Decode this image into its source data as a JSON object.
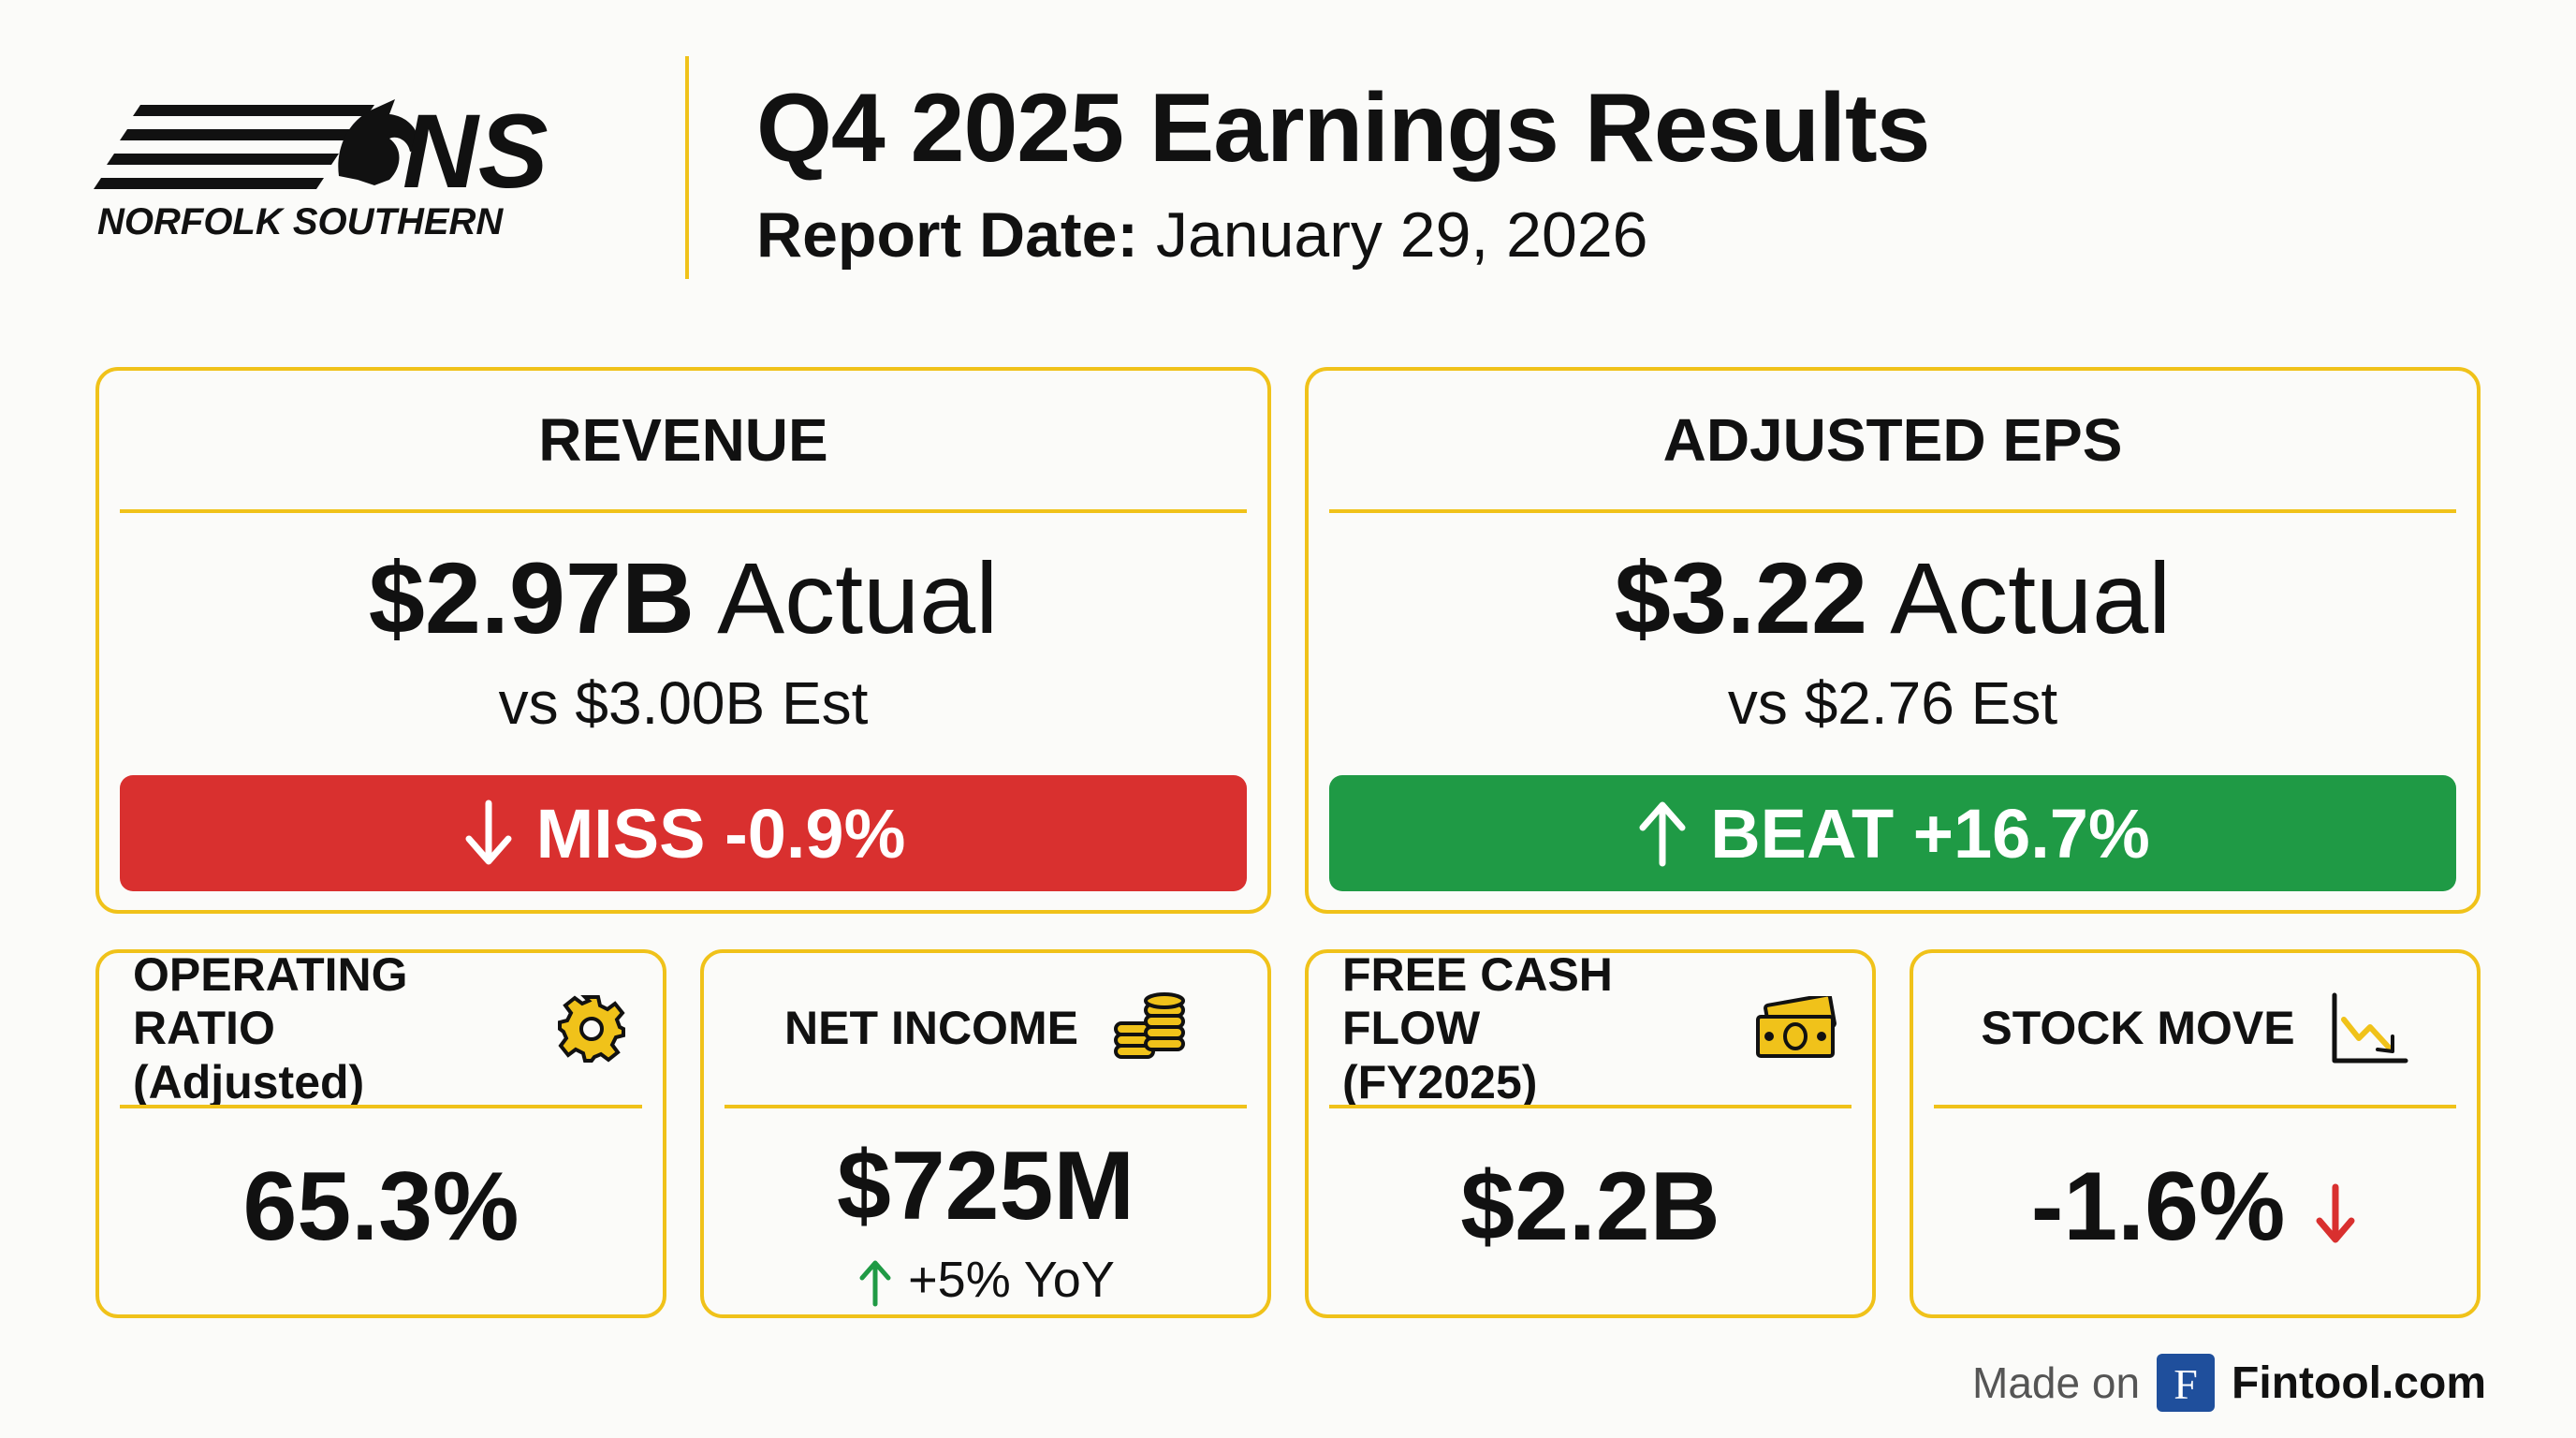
{
  "header": {
    "logo_text": "NORFOLK SOUTHERN",
    "logo_mark": "NS",
    "title": "Q4 2025 Earnings Results",
    "report_date_label": "Report Date:",
    "report_date_value": "January 29, 2026"
  },
  "revenue": {
    "title": "REVENUE",
    "actual_value": "$2.97B",
    "actual_suffix": "Actual",
    "estimate": "vs $3.00B Est",
    "result": "MISS -0.9%",
    "result_icon": "arrow-down-icon",
    "result_color": "#d9302f"
  },
  "eps": {
    "title": "ADJUSTED EPS",
    "actual_value": "$3.22",
    "actual_suffix": "Actual",
    "estimate": "vs $2.76 Est",
    "result": "BEAT +16.7%",
    "result_icon": "arrow-up-icon",
    "result_color": "#1f9a45"
  },
  "operating_ratio": {
    "title_line1": "OPERATING RATIO",
    "title_line2": "(Adjusted)",
    "icon": "gear-icon",
    "value": "65.3%"
  },
  "net_income": {
    "title": "NET INCOME",
    "icon": "coins-icon",
    "value": "$725M",
    "change": "+5% YoY",
    "change_icon": "arrow-up-icon"
  },
  "free_cash_flow": {
    "title_line1": "FREE CASH FLOW",
    "title_line2": "(FY2025)",
    "icon": "cash-icon",
    "value": "$2.2B"
  },
  "stock_move": {
    "title": "STOCK MOVE",
    "icon": "chart-down-icon",
    "value": "-1.6%",
    "value_icon": "arrow-down-icon"
  },
  "footer": {
    "made_on": "Made on",
    "brand_icon_letter": "F",
    "brand": "Fintool.com"
  },
  "colors": {
    "accent": "#f0c21a",
    "miss": "#d9302f",
    "beat": "#1f9a45",
    "brand_blue": "#1f4f9c"
  }
}
